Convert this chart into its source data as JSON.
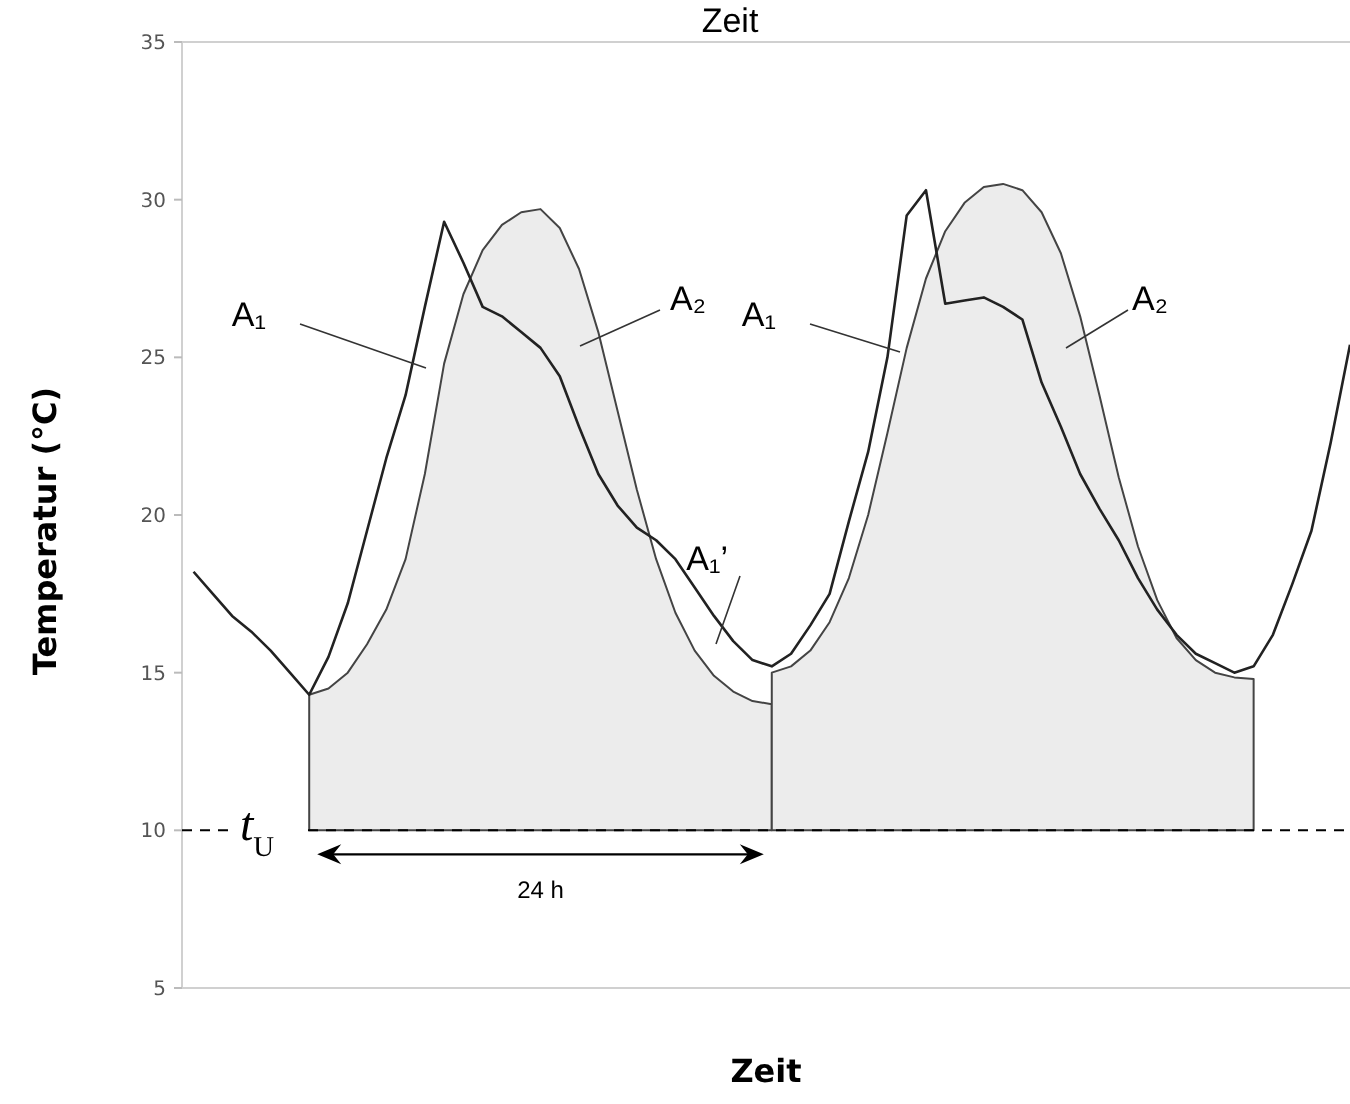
{
  "chart_data": {
    "type": "line",
    "title": "Zeit",
    "xlabel": "Zeit",
    "ylabel": "Temperatur (°C)",
    "categories": [
      null,
      null,
      null,
      null,
      null,
      null,
      null,
      null,
      null,
      null,
      null,
      null,
      null,
      null,
      null,
      null,
      null,
      null,
      null,
      null,
      null,
      null,
      null,
      null,
      null,
      null,
      null,
      null,
      null,
      null,
      null,
      null,
      null,
      null,
      null,
      null,
      null,
      null,
      null,
      null,
      null,
      null,
      null,
      null,
      null,
      null,
      null,
      null,
      null,
      null,
      null,
      null,
      null,
      null,
      null,
      null,
      null,
      null,
      null,
      null,
      null
    ],
    "ylim": [
      5,
      35
    ],
    "yticks": [
      5,
      10,
      15,
      20,
      25,
      30,
      35
    ],
    "grid": false,
    "series": [
      {
        "type": "area",
        "color": "#ececec",
        "values": [
          null,
          null,
          null,
          null,
          null,
          null,
          14.3,
          14.5,
          15.0,
          15.9,
          17.0,
          18.6,
          21.3,
          24.8,
          27.0,
          28.4,
          29.2,
          29.6,
          29.7,
          29.1,
          27.8,
          25.8,
          23.3,
          20.8,
          18.6,
          16.9,
          15.7,
          14.9,
          14.4,
          14.1,
          14.0,
          null,
          null,
          null,
          null,
          null,
          null,
          null,
          null,
          null,
          null,
          null,
          null,
          null,
          null,
          null,
          null,
          null,
          null,
          null,
          null,
          null,
          null,
          null,
          null,
          null,
          null,
          null,
          null,
          null,
          null
        ]
      },
      {
        "type": "area",
        "color": "#ececec",
        "values": [
          null,
          null,
          null,
          null,
          null,
          null,
          null,
          null,
          null,
          null,
          null,
          null,
          null,
          null,
          null,
          null,
          null,
          null,
          null,
          null,
          null,
          null,
          null,
          null,
          null,
          null,
          null,
          null,
          null,
          null,
          15.0,
          15.2,
          15.7,
          16.6,
          18.0,
          20.0,
          22.6,
          25.3,
          27.5,
          29.0,
          29.9,
          30.4,
          30.5,
          30.3,
          29.6,
          28.3,
          26.3,
          23.8,
          21.2,
          19.0,
          17.3,
          16.1,
          15.4,
          15.0,
          14.85,
          14.8,
          null,
          null,
          null,
          null,
          null
        ]
      },
      {
        "color": "#222222",
        "values": [
          18.2,
          17.5,
          16.8,
          16.3,
          15.7,
          15.0,
          14.3,
          15.5,
          17.2,
          19.5,
          21.8,
          23.8,
          26.6,
          29.3,
          28.0,
          26.6,
          26.3,
          25.8,
          25.3,
          24.4,
          22.8,
          21.3,
          20.3,
          19.6,
          19.2,
          18.6,
          17.7,
          16.8,
          16.0,
          15.4,
          15.2,
          15.6,
          16.5,
          17.5,
          19.8,
          22.0,
          25.0,
          29.5,
          30.3,
          26.7,
          26.8,
          26.9,
          26.6,
          26.2,
          24.2,
          22.8,
          21.3,
          20.2,
          19.2,
          18.0,
          17.0,
          16.2,
          15.6,
          15.3,
          15.0,
          15.2,
          16.2,
          17.8,
          19.5,
          22.3,
          25.4
        ]
      }
    ],
    "ref_lines": [
      {
        "axis": "y",
        "value": 10,
        "label": "t$_{U}$",
        "line_style": "dashed",
        "color": "#000000"
      }
    ],
    "annotations": [
      "A₁",
      "A₂",
      "A₁",
      "A₂",
      "A₁’",
      "24 h"
    ]
  }
}
